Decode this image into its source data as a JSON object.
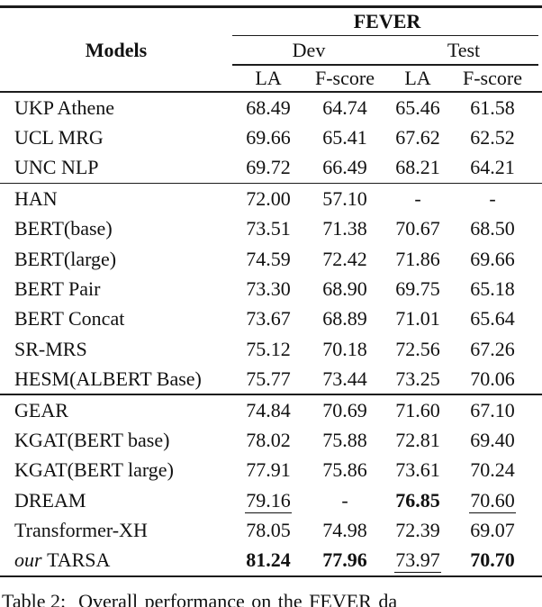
{
  "colors": {
    "background": "#ffffff",
    "text": "#111111",
    "rule": "#1c1c1c"
  },
  "table": {
    "group_header": "FEVER",
    "models_header": "Models",
    "dev_header": "Dev",
    "test_header": "Test",
    "sub_headers": [
      "LA",
      "F-score",
      "LA",
      "F-score"
    ],
    "groups": [
      {
        "rows": [
          {
            "model": "UKP Athene",
            "values": [
              {
                "t": "68.49",
                "s": ""
              },
              {
                "t": "64.74",
                "s": ""
              },
              {
                "t": "65.46",
                "s": ""
              },
              {
                "t": "61.58",
                "s": ""
              }
            ]
          },
          {
            "model": "UCL MRG",
            "values": [
              {
                "t": "69.66",
                "s": ""
              },
              {
                "t": "65.41",
                "s": ""
              },
              {
                "t": "67.62",
                "s": ""
              },
              {
                "t": "62.52",
                "s": ""
              }
            ]
          },
          {
            "model": "UNC NLP",
            "values": [
              {
                "t": "69.72",
                "s": ""
              },
              {
                "t": "66.49",
                "s": ""
              },
              {
                "t": "68.21",
                "s": ""
              },
              {
                "t": "64.21",
                "s": ""
              }
            ]
          }
        ]
      },
      {
        "rows": [
          {
            "model": "HAN",
            "values": [
              {
                "t": "72.00",
                "s": ""
              },
              {
                "t": "57.10",
                "s": ""
              },
              {
                "t": "-",
                "s": ""
              },
              {
                "t": "-",
                "s": ""
              }
            ]
          },
          {
            "model": "BERT(base)",
            "values": [
              {
                "t": "73.51",
                "s": ""
              },
              {
                "t": "71.38",
                "s": ""
              },
              {
                "t": "70.67",
                "s": ""
              },
              {
                "t": "68.50",
                "s": ""
              }
            ]
          },
          {
            "model": "BERT(large)",
            "values": [
              {
                "t": "74.59",
                "s": ""
              },
              {
                "t": "72.42",
                "s": ""
              },
              {
                "t": "71.86",
                "s": ""
              },
              {
                "t": "69.66",
                "s": ""
              }
            ]
          },
          {
            "model": "BERT Pair",
            "values": [
              {
                "t": "73.30",
                "s": ""
              },
              {
                "t": "68.90",
                "s": ""
              },
              {
                "t": "69.75",
                "s": ""
              },
              {
                "t": "65.18",
                "s": ""
              }
            ]
          },
          {
            "model": "BERT Concat",
            "values": [
              {
                "t": "73.67",
                "s": ""
              },
              {
                "t": "68.89",
                "s": ""
              },
              {
                "t": "71.01",
                "s": ""
              },
              {
                "t": "65.64",
                "s": ""
              }
            ]
          },
          {
            "model": "SR-MRS",
            "values": [
              {
                "t": "75.12",
                "s": ""
              },
              {
                "t": "70.18",
                "s": ""
              },
              {
                "t": "72.56",
                "s": ""
              },
              {
                "t": "67.26",
                "s": ""
              }
            ]
          },
          {
            "model": "HESM(ALBERT Base)",
            "values": [
              {
                "t": "75.77",
                "s": ""
              },
              {
                "t": "73.44",
                "s": ""
              },
              {
                "t": "73.25",
                "s": ""
              },
              {
                "t": "70.06",
                "s": ""
              }
            ]
          }
        ]
      },
      {
        "rows": [
          {
            "model": "GEAR",
            "values": [
              {
                "t": "74.84",
                "s": ""
              },
              {
                "t": "70.69",
                "s": ""
              },
              {
                "t": "71.60",
                "s": ""
              },
              {
                "t": "67.10",
                "s": ""
              }
            ]
          },
          {
            "model": "KGAT(BERT base)",
            "values": [
              {
                "t": "78.02",
                "s": ""
              },
              {
                "t": "75.88",
                "s": ""
              },
              {
                "t": "72.81",
                "s": ""
              },
              {
                "t": "69.40",
                "s": ""
              }
            ]
          },
          {
            "model": "KGAT(BERT large)",
            "values": [
              {
                "t": "77.91",
                "s": ""
              },
              {
                "t": "75.86",
                "s": ""
              },
              {
                "t": "73.61",
                "s": ""
              },
              {
                "t": "70.24",
                "s": ""
              }
            ]
          },
          {
            "model": "DREAM",
            "values": [
              {
                "t": "79.16",
                "s": "u"
              },
              {
                "t": "-",
                "s": ""
              },
              {
                "t": "76.85",
                "s": "b"
              },
              {
                "t": "70.60",
                "s": "u"
              }
            ]
          },
          {
            "model": "Transformer-XH",
            "values": [
              {
                "t": "78.05",
                "s": ""
              },
              {
                "t": "74.98",
                "s": ""
              },
              {
                "t": "72.39",
                "s": ""
              },
              {
                "t": "69.07",
                "s": ""
              }
            ]
          },
          {
            "model": "TARSA",
            "prefix": "our",
            "values": [
              {
                "t": "81.24",
                "s": "b"
              },
              {
                "t": "77.96",
                "s": "b"
              },
              {
                "t": "73.97",
                "s": "u"
              },
              {
                "t": "70.70",
                "s": "b"
              }
            ]
          }
        ]
      }
    ],
    "caption": {
      "label": "Table 2:",
      "text": "Overall performance on the FEVER da"
    }
  }
}
